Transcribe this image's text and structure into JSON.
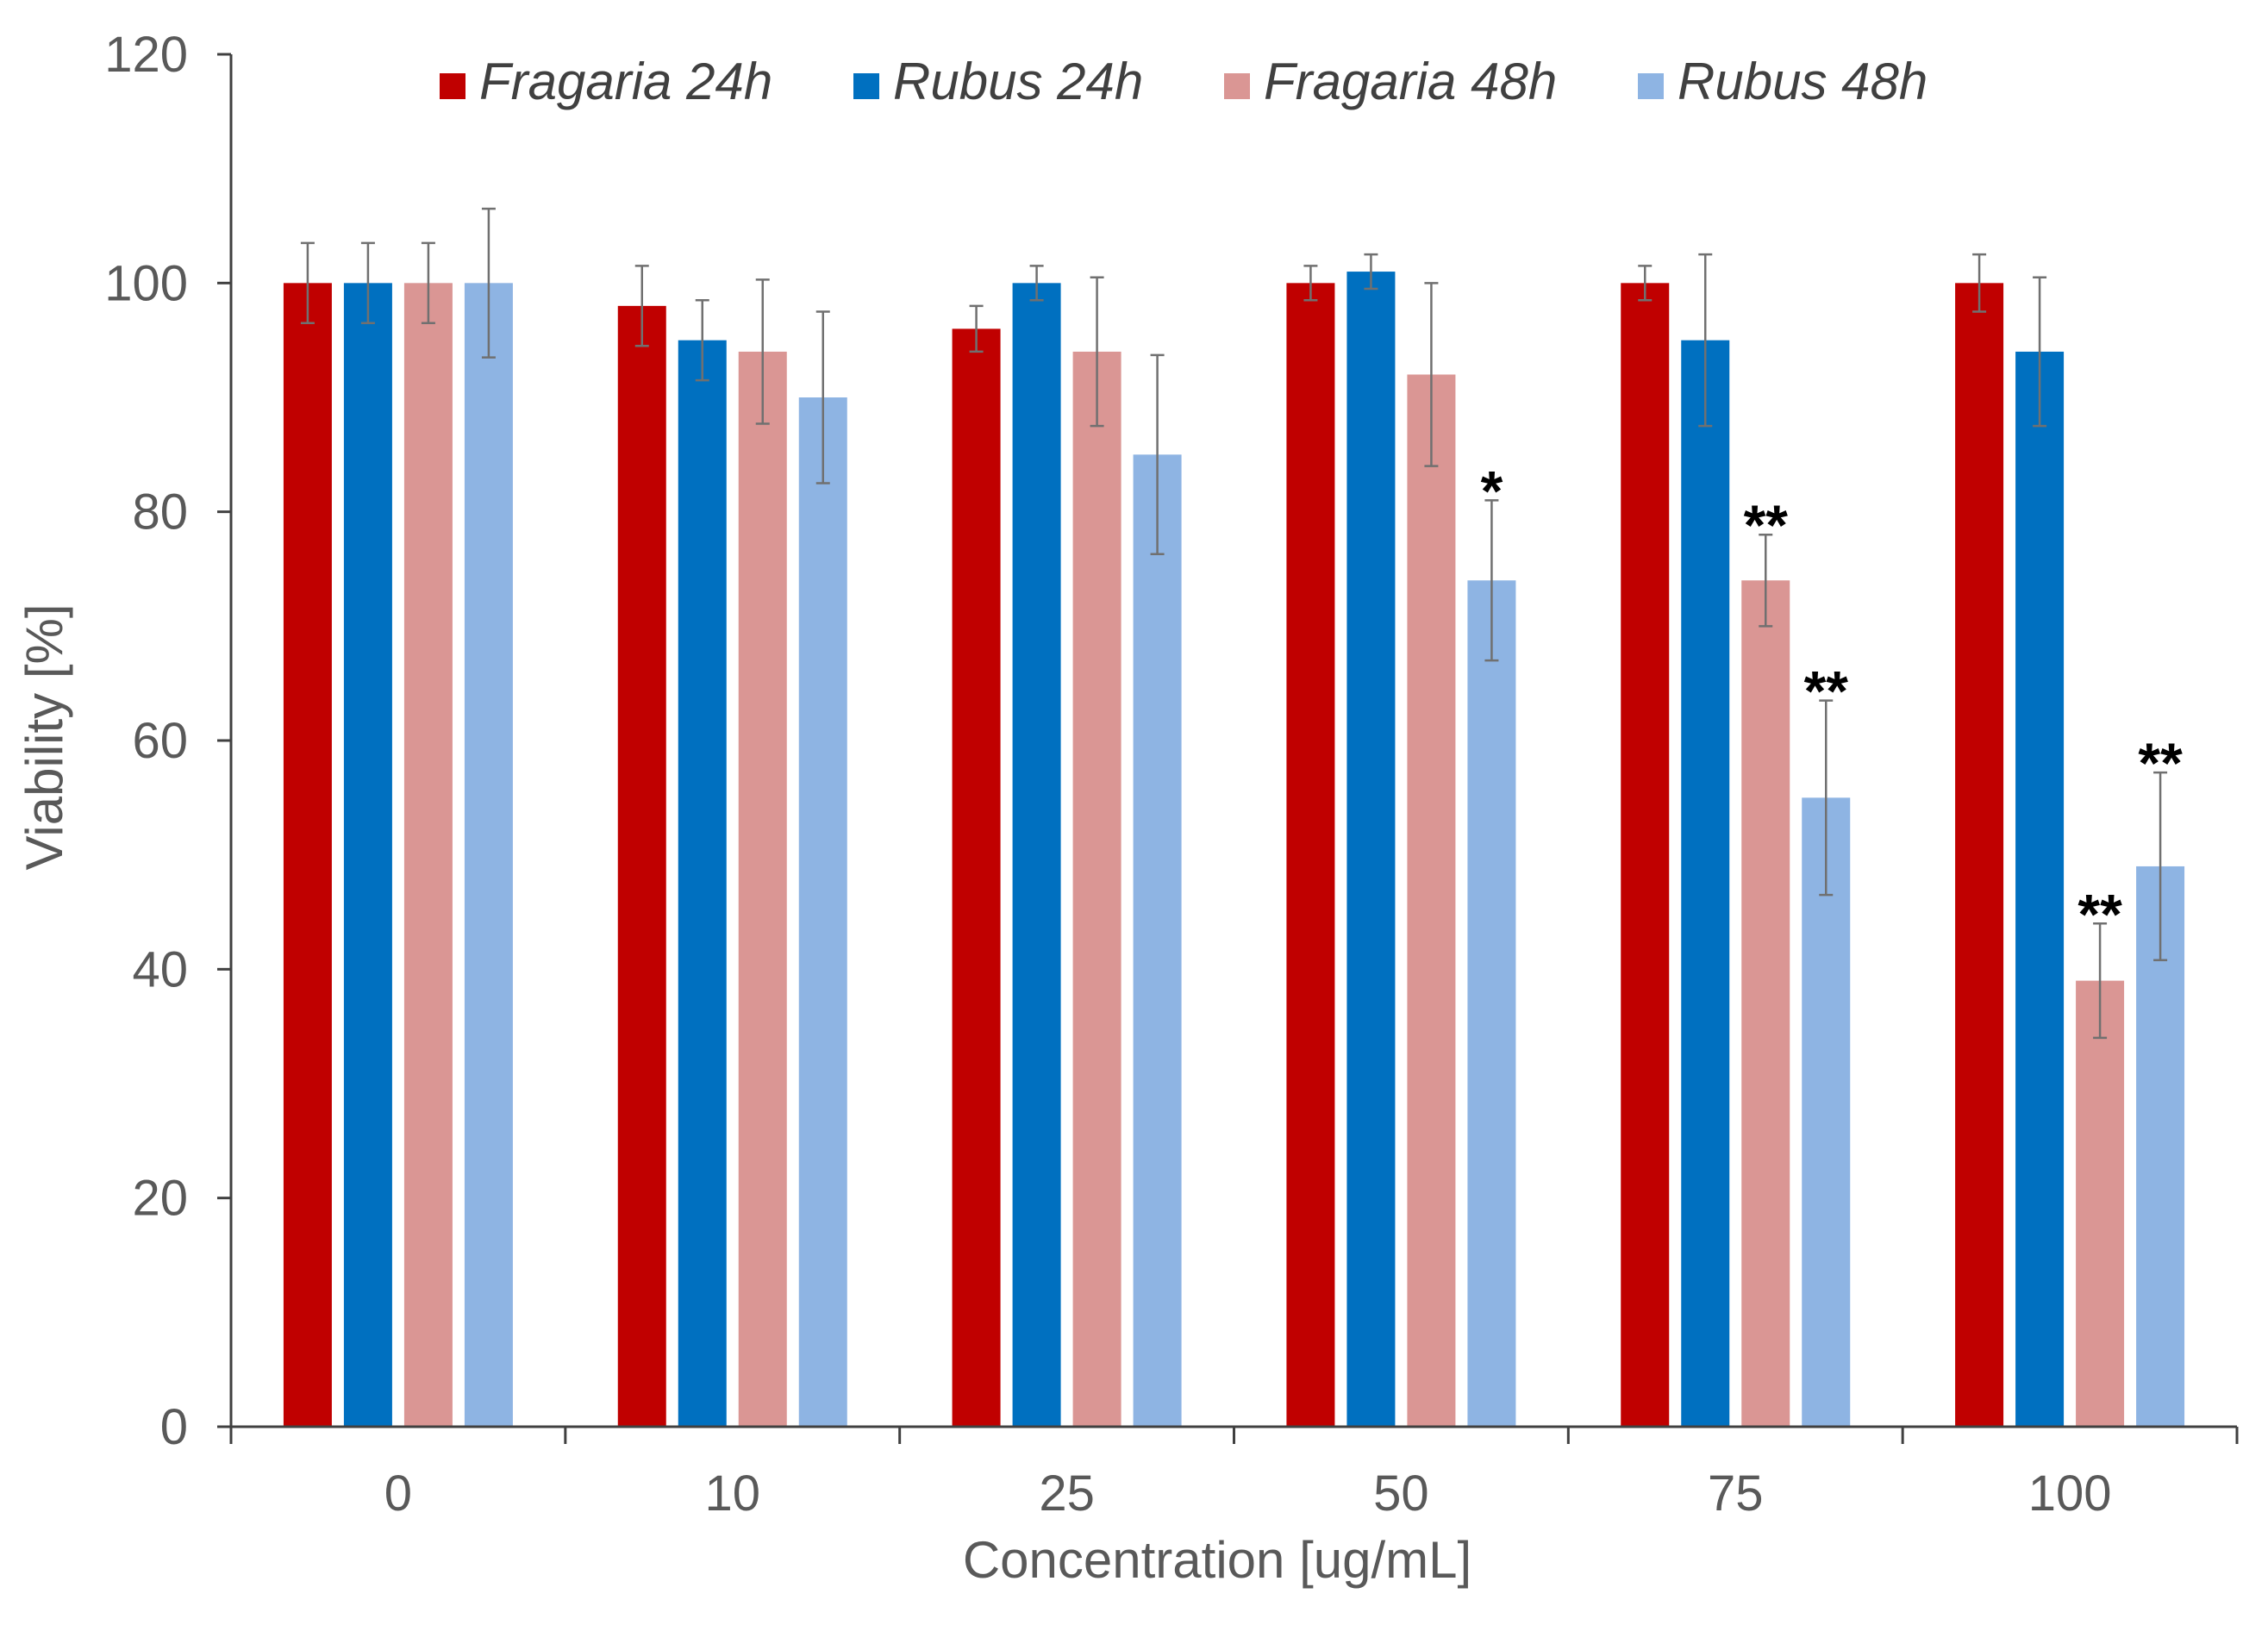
{
  "chart_data": {
    "type": "bar",
    "title": "",
    "xlabel": "Concentration [ug/mL]",
    "ylabel": "Viability [%]",
    "ylim": [
      0,
      120
    ],
    "yticks": [
      0,
      20,
      40,
      60,
      80,
      100,
      120
    ],
    "categories": [
      "0",
      "10",
      "25",
      "50",
      "75",
      "100"
    ],
    "legend_position": "top",
    "series": [
      {
        "name": "Fragaria 24h",
        "color": "#c00000",
        "values": [
          100,
          98,
          96,
          100,
          100,
          100
        ],
        "errors": [
          3.5,
          3.5,
          2,
          1.5,
          1.5,
          2.5
        ],
        "significance": [
          "",
          "",
          "",
          "",
          "",
          ""
        ]
      },
      {
        "name": "Rubus 24h",
        "color": "#0070c0",
        "values": [
          100,
          95,
          100,
          101,
          95,
          94
        ],
        "errors": [
          3.5,
          3.5,
          1.5,
          1.5,
          7.5,
          6.5
        ],
        "significance": [
          "",
          "",
          "",
          "",
          "",
          ""
        ]
      },
      {
        "name": "Fragaria 48h",
        "color": "#da9694",
        "values": [
          100,
          94,
          94,
          92,
          74,
          39
        ],
        "errors": [
          3.5,
          6.3,
          6.5,
          8,
          4,
          5
        ],
        "significance": [
          "",
          "",
          "",
          "",
          "**",
          "**"
        ]
      },
      {
        "name": "Rubus 48h",
        "color": "#8eb4e3",
        "values": [
          100,
          90,
          85,
          74,
          55,
          49
        ],
        "errors": [
          6.5,
          7.5,
          8.7,
          7,
          8.5,
          8.2
        ],
        "significance": [
          "",
          "",
          "",
          "*",
          "**",
          "**"
        ]
      }
    ]
  }
}
